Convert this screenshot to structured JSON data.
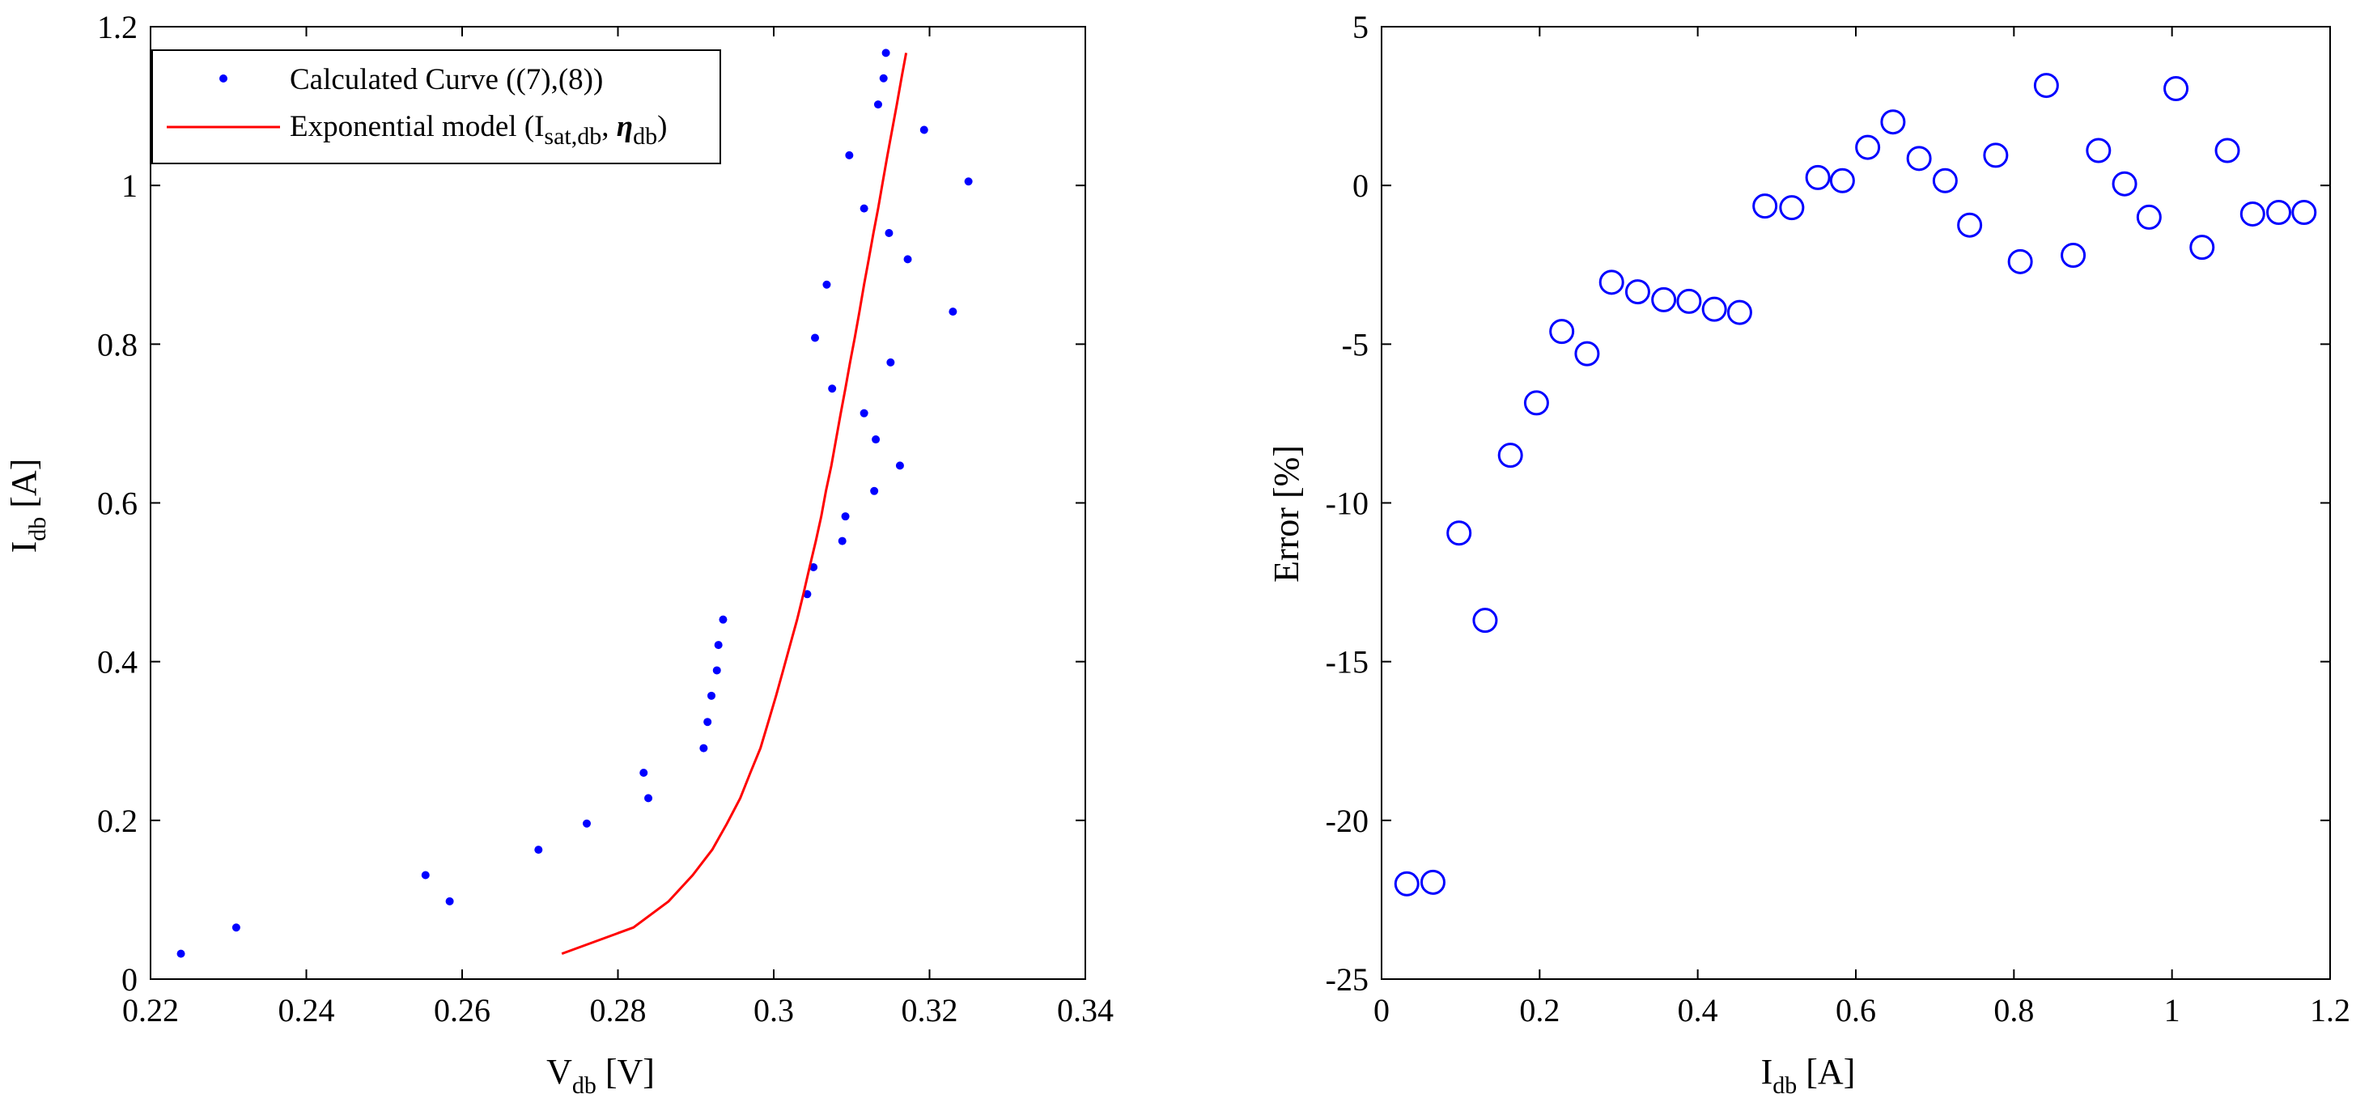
{
  "chart_data": [
    {
      "type": "scatter",
      "title": "",
      "xlabel": {
        "main": "V",
        "sub": "db",
        "unit": "[V]"
      },
      "ylabel": {
        "main": "I",
        "sub": "db",
        "unit": "[A]"
      },
      "xlim": [
        0.22,
        0.34
      ],
      "ylim": [
        0,
        1.2
      ],
      "xticks": [
        0.22,
        0.24,
        0.26,
        0.28,
        0.3,
        0.32,
        0.34
      ],
      "xtick_labels": [
        "0.22",
        "0.24",
        "0.26",
        "0.28",
        "0.3",
        "0.32",
        "0.34"
      ],
      "yticks": [
        0,
        0.2,
        0.4,
        0.6,
        0.8,
        1,
        1.2
      ],
      "ytick_labels": [
        "0",
        "0.2",
        "0.4",
        "0.6",
        "0.8",
        "1",
        "1.2"
      ],
      "legend": {
        "position": "top-left",
        "entries": [
          {
            "label": "Calculated Curve ((7),(8))",
            "marker": "dot"
          },
          {
            "label_parts": [
              "Exponential model (I",
              "sat,db",
              ", ",
              "η",
              "db",
              ")"
            ],
            "marker": "line"
          }
        ]
      },
      "series": [
        {
          "name": "Calculated Curve ((7),(8))",
          "style": "dots",
          "color": "#0000ff",
          "points": [
            [
              0.2239,
              0.032
            ],
            [
              0.231,
              0.065
            ],
            [
              0.2553,
              0.131
            ],
            [
              0.2584,
              0.098
            ],
            [
              0.2698,
              0.163
            ],
            [
              0.276,
              0.196
            ],
            [
              0.2833,
              0.26
            ],
            [
              0.2839,
              0.228
            ],
            [
              0.291,
              0.291
            ],
            [
              0.2915,
              0.324
            ],
            [
              0.292,
              0.357
            ],
            [
              0.2927,
              0.389
            ],
            [
              0.2929,
              0.421
            ],
            [
              0.2935,
              0.453
            ],
            [
              0.3043,
              0.485
            ],
            [
              0.3051,
              0.519
            ],
            [
              0.3088,
              0.552
            ],
            [
              0.3092,
              0.583
            ],
            [
              0.3129,
              0.615
            ],
            [
              0.3162,
              0.647
            ],
            [
              0.3131,
              0.68
            ],
            [
              0.3116,
              0.713
            ],
            [
              0.3075,
              0.744
            ],
            [
              0.315,
              0.777
            ],
            [
              0.3053,
              0.808
            ],
            [
              0.323,
              0.841
            ],
            [
              0.3068,
              0.875
            ],
            [
              0.3172,
              0.907
            ],
            [
              0.3148,
              0.94
            ],
            [
              0.3116,
              0.971
            ],
            [
              0.325,
              1.005
            ],
            [
              0.3097,
              1.038
            ],
            [
              0.3193,
              1.07
            ],
            [
              0.3134,
              1.102
            ],
            [
              0.3141,
              1.135
            ],
            [
              0.3144,
              1.167
            ]
          ]
        },
        {
          "name": "Exponential model (Isat,db, ηdb)",
          "style": "line",
          "color": "#ff0000",
          "points": [
            [
              0.2728,
              0.032
            ],
            [
              0.282,
              0.065
            ],
            [
              0.2865,
              0.098
            ],
            [
              0.2896,
              0.131
            ],
            [
              0.2921,
              0.163
            ],
            [
              0.294,
              0.196
            ],
            [
              0.2957,
              0.228
            ],
            [
              0.297,
              0.26
            ],
            [
              0.2983,
              0.291
            ],
            [
              0.2993,
              0.324
            ],
            [
              0.3003,
              0.357
            ],
            [
              0.3012,
              0.389
            ],
            [
              0.3021,
              0.421
            ],
            [
              0.303,
              0.453
            ],
            [
              0.3038,
              0.485
            ],
            [
              0.3046,
              0.519
            ],
            [
              0.3054,
              0.552
            ],
            [
              0.3061,
              0.583
            ],
            [
              0.3067,
              0.615
            ],
            [
              0.3074,
              0.647
            ],
            [
              0.308,
              0.68
            ],
            [
              0.3086,
              0.713
            ],
            [
              0.3092,
              0.744
            ],
            [
              0.3098,
              0.777
            ],
            [
              0.3104,
              0.808
            ],
            [
              0.311,
              0.841
            ],
            [
              0.3116,
              0.875
            ],
            [
              0.3122,
              0.907
            ],
            [
              0.3128,
              0.94
            ],
            [
              0.3134,
              0.971
            ],
            [
              0.314,
              1.005
            ],
            [
              0.3146,
              1.038
            ],
            [
              0.3152,
              1.07
            ],
            [
              0.3158,
              1.102
            ],
            [
              0.3164,
              1.135
            ],
            [
              0.317,
              1.167
            ]
          ]
        }
      ]
    },
    {
      "type": "scatter",
      "title": "",
      "xlabel": {
        "main": "I",
        "sub": "db",
        "unit": "[A]"
      },
      "ylabel": {
        "main": "Error [%]",
        "sub": "",
        "unit": ""
      },
      "xlim": [
        0,
        1.2
      ],
      "ylim": [
        -25,
        5
      ],
      "xticks": [
        0,
        0.2,
        0.4,
        0.6,
        0.8,
        1,
        1.2
      ],
      "xtick_labels": [
        "0",
        "0.2",
        "0.4",
        "0.6",
        "0.8",
        "1",
        "1.2"
      ],
      "yticks": [
        -25,
        -20,
        -15,
        -10,
        -5,
        0,
        5
      ],
      "ytick_labels": [
        "-25",
        "-20",
        "-15",
        "-10",
        "-5",
        "0",
        "5"
      ],
      "series": [
        {
          "name": "Error",
          "style": "circles",
          "color": "#0000ff",
          "points": [
            [
              0.032,
              -22.0
            ],
            [
              0.065,
              -21.95
            ],
            [
              0.098,
              -10.95
            ],
            [
              0.131,
              -13.7
            ],
            [
              0.163,
              -8.5
            ],
            [
              0.196,
              -6.85
            ],
            [
              0.228,
              -4.6
            ],
            [
              0.26,
              -5.3
            ],
            [
              0.291,
              -3.05
            ],
            [
              0.324,
              -3.35
            ],
            [
              0.357,
              -3.6
            ],
            [
              0.389,
              -3.65
            ],
            [
              0.421,
              -3.9
            ],
            [
              0.453,
              -4.0
            ],
            [
              0.485,
              -0.65
            ],
            [
              0.519,
              -0.7
            ],
            [
              0.552,
              0.25
            ],
            [
              0.583,
              0.15
            ],
            [
              0.615,
              1.2
            ],
            [
              0.647,
              2.0
            ],
            [
              0.68,
              0.85
            ],
            [
              0.713,
              0.15
            ],
            [
              0.744,
              -1.25
            ],
            [
              0.777,
              0.95
            ],
            [
              0.808,
              -2.4
            ],
            [
              0.841,
              3.15
            ],
            [
              0.875,
              -2.2
            ],
            [
              0.907,
              1.1
            ],
            [
              0.94,
              0.05
            ],
            [
              0.971,
              -1.0
            ],
            [
              1.005,
              3.05
            ],
            [
              1.038,
              -1.95
            ],
            [
              1.07,
              1.1
            ],
            [
              1.102,
              -0.9
            ],
            [
              1.135,
              -0.85
            ],
            [
              1.167,
              -0.85
            ]
          ]
        }
      ]
    }
  ]
}
